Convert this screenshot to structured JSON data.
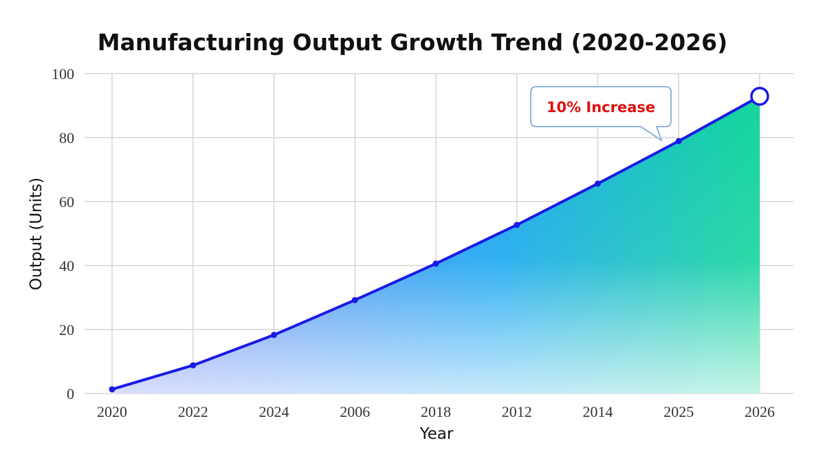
{
  "chart_data": {
    "type": "area",
    "title": "Manufacturing Output Growth Trend (2020-2026)",
    "xlabel": "Year",
    "ylabel": "Output (Units)",
    "categories": [
      "2020",
      "2022",
      "2024",
      "2006",
      "2018",
      "2012",
      "2014",
      "2025",
      "2026"
    ],
    "series": [
      {
        "values": [
          1.3,
          8.8,
          18.3,
          29.2,
          40.6,
          52.7,
          65.6,
          78.9,
          92.9
        ]
      }
    ],
    "ylim": [
      0,
      100
    ],
    "yticks": [
      0,
      20,
      40,
      60,
      80,
      100
    ],
    "grid": true,
    "annotation": {
      "text": "10% Increase",
      "target_category": "2026"
    },
    "colors": {
      "line": "#1a1ae6",
      "fill_left": "#6c78f7",
      "fill_mid": "#1aa8f0",
      "fill_right": "#14d69a",
      "annotation_text": "#e01010",
      "annotation_border": "#8fb3dc"
    }
  }
}
